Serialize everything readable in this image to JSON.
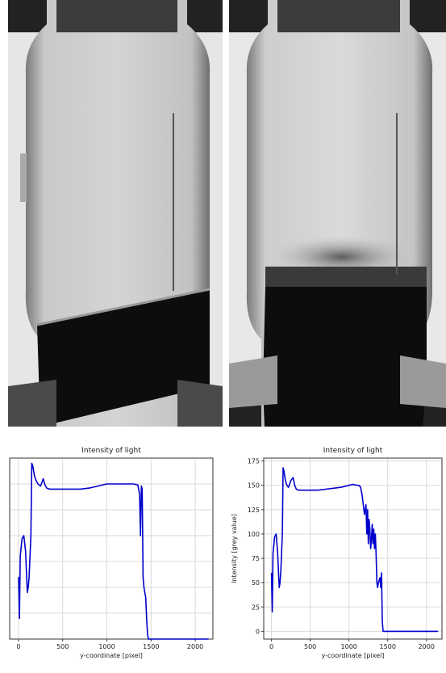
{
  "colors": {
    "line": "#0000cc",
    "grid": "#d9d9d9"
  },
  "images": [
    {
      "name": "bottle-photo-left",
      "description_icon": "vial-with-tilted-powder-bed"
    },
    {
      "name": "bottle-photo-right",
      "description_icon": "vial-with-flat-powder-bed"
    }
  ],
  "chart_data": [
    {
      "type": "line",
      "title": "Intensity of light",
      "xlabel": "y-coordinate [pixel]",
      "ylabel": "",
      "xlim": [
        -100,
        2200
      ],
      "ylim": [
        0,
        175
      ],
      "xticks": [
        0,
        500,
        1000,
        1500,
        2000
      ],
      "yticks": [
        0,
        25,
        50,
        75,
        100,
        125,
        150,
        175
      ],
      "yticks_visible": false,
      "grid": true,
      "series": [
        {
          "x": [
            0,
            10,
            20,
            40,
            60,
            80,
            100,
            110,
            120,
            140,
            150,
            160,
            180,
            200,
            220,
            250,
            280,
            300,
            320,
            350,
            400,
            500,
            600,
            700,
            800,
            900,
            1000,
            1100,
            1200,
            1300,
            1350,
            1370,
            1380,
            1390,
            1400,
            1410,
            1420,
            1430,
            1440,
            1450,
            1460,
            1470,
            1480,
            1500,
            2150
          ],
          "y": [
            60,
            20,
            80,
            97,
            100,
            85,
            45,
            50,
            60,
            100,
            170,
            168,
            158,
            153,
            150,
            148,
            155,
            149,
            146,
            145,
            145,
            145,
            145,
            145,
            146,
            148,
            150,
            150,
            150,
            150,
            149,
            140,
            100,
            148,
            145,
            60,
            50,
            45,
            40,
            20,
            5,
            0,
            0,
            0,
            0
          ]
        }
      ]
    },
    {
      "type": "line",
      "title": "Intensity of light",
      "xlabel": "y-coordinate [pixel]",
      "ylabel": "Intensity [grey value]",
      "xlim": [
        -100,
        2200
      ],
      "ylim": [
        -8,
        178
      ],
      "xticks": [
        0,
        500,
        1000,
        1500,
        2000
      ],
      "yticks": [
        0,
        25,
        50,
        75,
        100,
        125,
        150,
        175
      ],
      "yticks_visible": true,
      "grid": true,
      "series": [
        {
          "x": [
            0,
            10,
            20,
            40,
            60,
            80,
            100,
            110,
            120,
            140,
            150,
            160,
            180,
            200,
            220,
            250,
            280,
            300,
            320,
            350,
            400,
            500,
            600,
            700,
            800,
            900,
            1000,
            1050,
            1100,
            1130,
            1150,
            1170,
            1200,
            1220,
            1230,
            1240,
            1250,
            1260,
            1270,
            1280,
            1290,
            1300,
            1310,
            1320,
            1330,
            1340,
            1350,
            1360,
            1370,
            1380,
            1400,
            1410,
            1420,
            1430,
            1440,
            1460,
            1480,
            1500,
            2150
          ],
          "y": [
            60,
            20,
            80,
            97,
            100,
            80,
            45,
            50,
            60,
            100,
            168,
            165,
            155,
            150,
            148,
            155,
            158,
            150,
            146,
            145,
            145,
            145,
            145,
            146,
            147,
            148,
            150,
            151,
            150,
            150,
            148,
            140,
            120,
            130,
            100,
            125,
            90,
            115,
            105,
            85,
            95,
            110,
            90,
            105,
            85,
            100,
            80,
            50,
            45,
            50,
            55,
            45,
            60,
            10,
            0,
            0,
            0,
            0,
            0
          ]
        }
      ]
    }
  ]
}
